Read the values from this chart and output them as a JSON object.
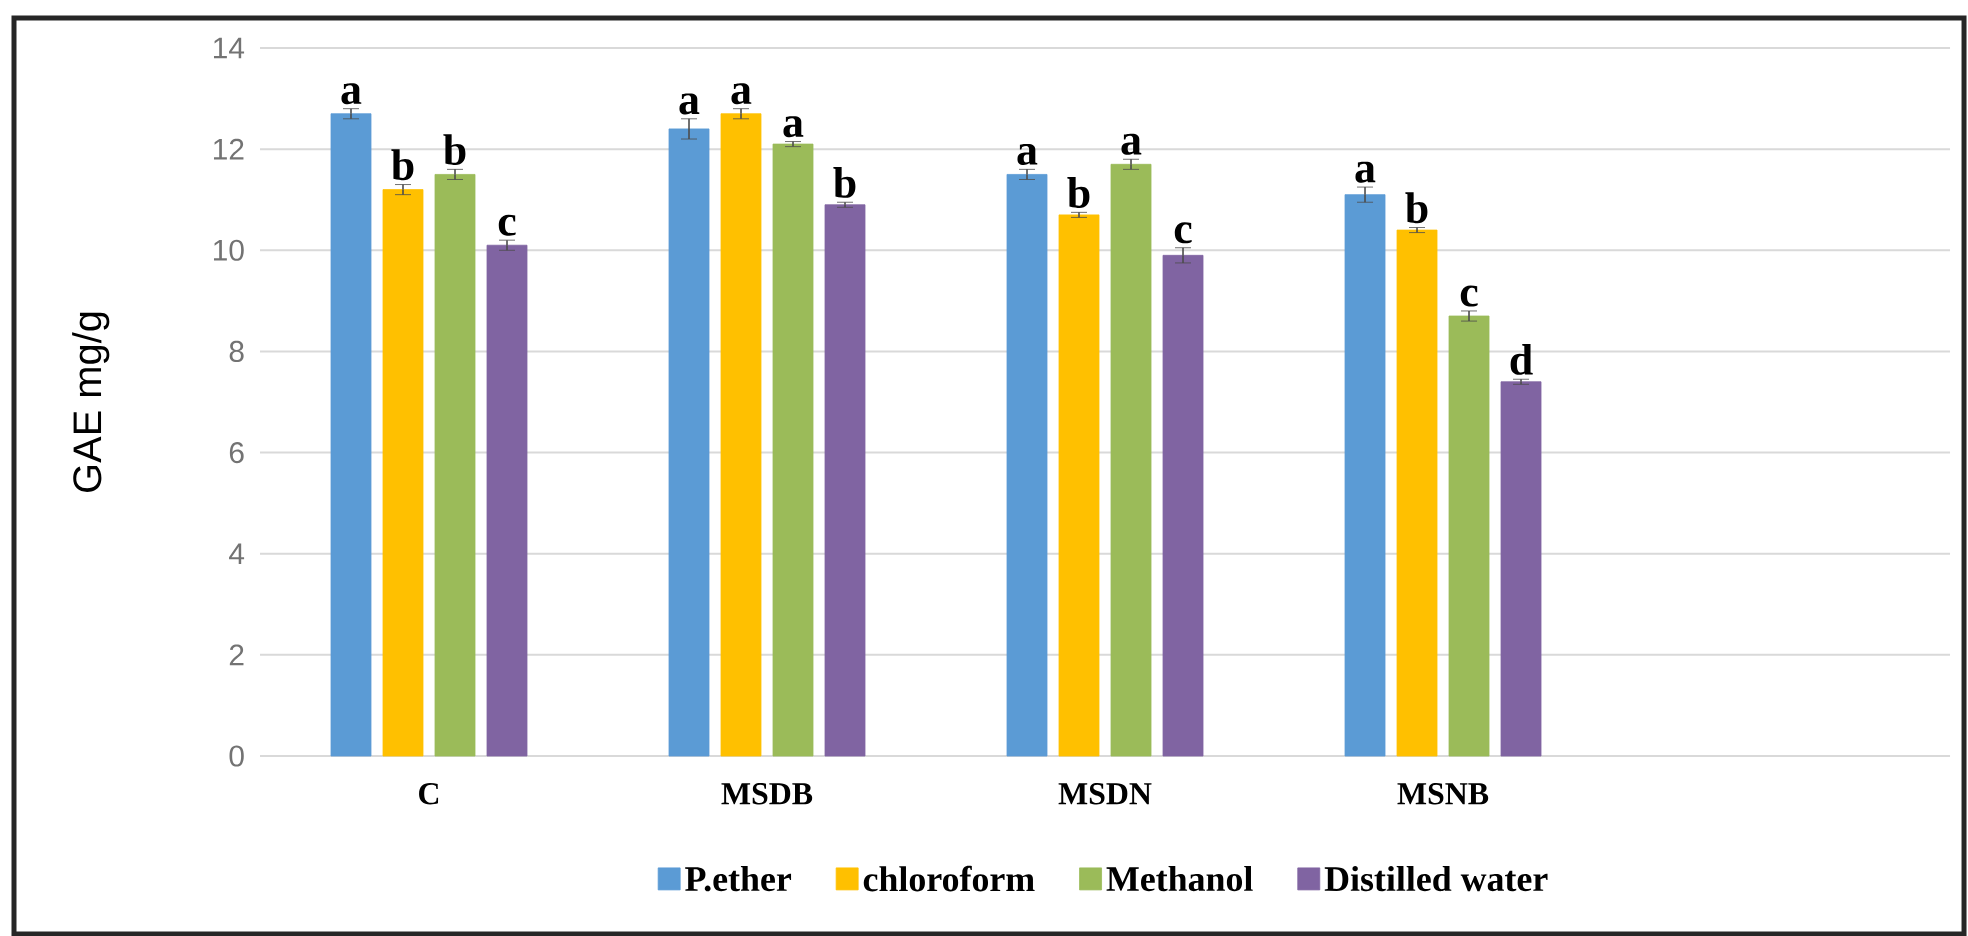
{
  "chart_data": {
    "type": "bar",
    "ylabel": "GAE mg/g",
    "categories": [
      "C",
      "MSDB",
      "MSDN",
      "MSNB",
      null
    ],
    "series": [
      {
        "name": "P.ether",
        "color": "#5b9bd5",
        "values": [
          12.7,
          12.4,
          11.5,
          11.1,
          null
        ],
        "errors": [
          0.1,
          0.2,
          0.1,
          0.15,
          null
        ]
      },
      {
        "name": "chloroform",
        "color": "#ffc000",
        "values": [
          11.2,
          12.7,
          10.7,
          10.4,
          null
        ],
        "errors": [
          0.1,
          0.1,
          0.05,
          0.05,
          null
        ]
      },
      {
        "name": "Methanol",
        "color": "#9bbb59",
        "values": [
          11.5,
          12.1,
          11.7,
          8.7,
          null
        ],
        "errors": [
          0.1,
          0.05,
          0.1,
          0.1,
          null
        ]
      },
      {
        "name": "Distilled water",
        "color": "#8064a2",
        "values": [
          10.1,
          10.9,
          9.9,
          7.4,
          null
        ],
        "errors": [
          0.1,
          0.05,
          0.15,
          0.05,
          null
        ]
      }
    ],
    "ylim": [
      0,
      14
    ],
    "yticks": [
      0,
      2,
      4,
      6,
      8,
      10,
      12,
      14
    ],
    "grid": "y",
    "legend": "bottom",
    "annotations": [
      "a",
      "b",
      "b",
      "c",
      "a",
      "a",
      "a",
      "b",
      "a",
      "b",
      "a",
      "c",
      "a",
      "b",
      "c",
      "d"
    ]
  }
}
